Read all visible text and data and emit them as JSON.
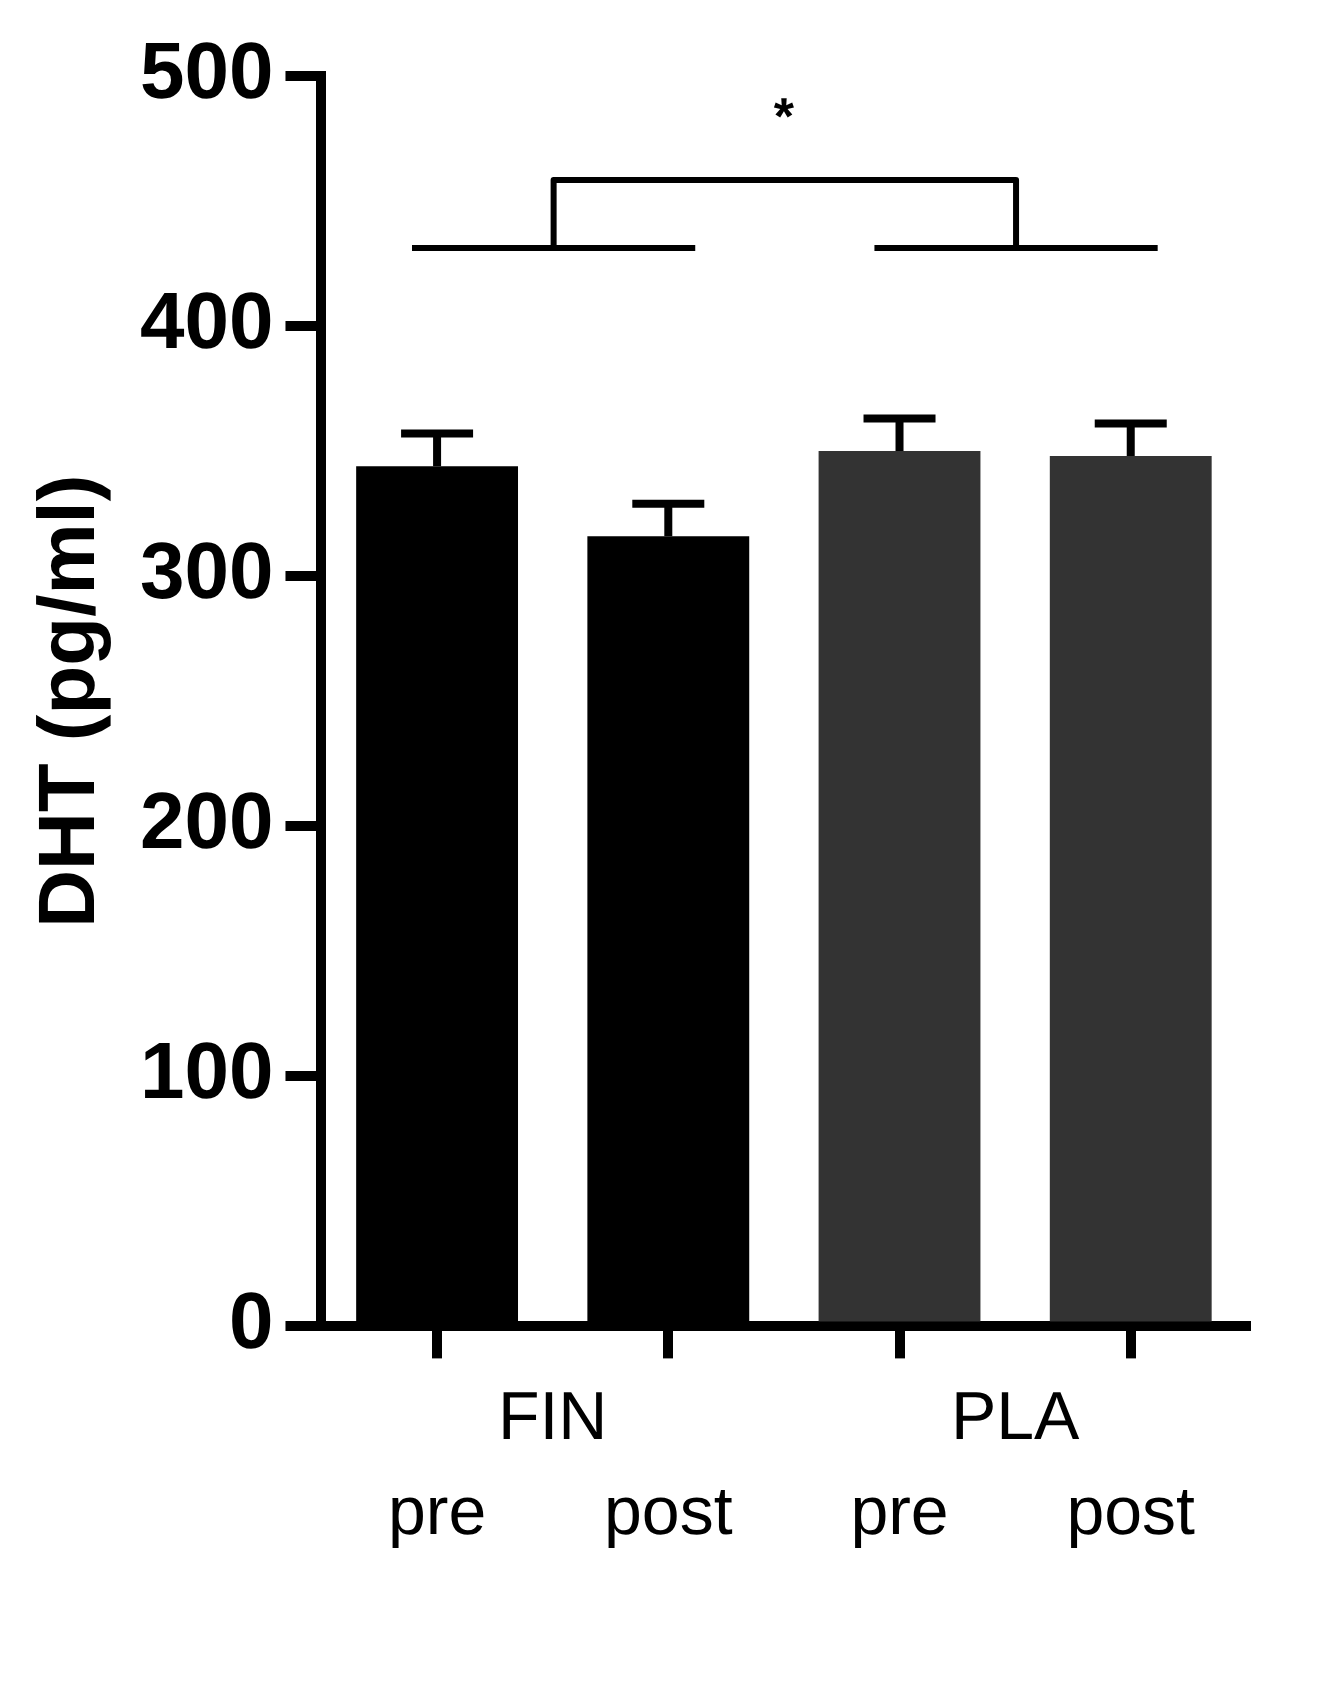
{
  "chart_data": {
    "type": "bar",
    "ylabel": "DHT (pg/ml)",
    "categories": [
      "pre",
      "post",
      "pre",
      "post"
    ],
    "values": [
      344,
      316,
      350,
      348
    ],
    "colors": [
      "#000000",
      "#000000",
      "#333333",
      "#333333"
    ],
    "errors": [
      [
        344,
        357
      ],
      [
        316,
        329
      ],
      [
        350,
        363
      ],
      [
        348,
        361
      ]
    ],
    "ylim": [
      0,
      500
    ],
    "yticks": [
      0,
      100,
      200,
      300,
      400,
      500
    ],
    "grid": false,
    "legend": false,
    "annotations": [
      "FIN",
      "PLA",
      "*"
    ]
  }
}
